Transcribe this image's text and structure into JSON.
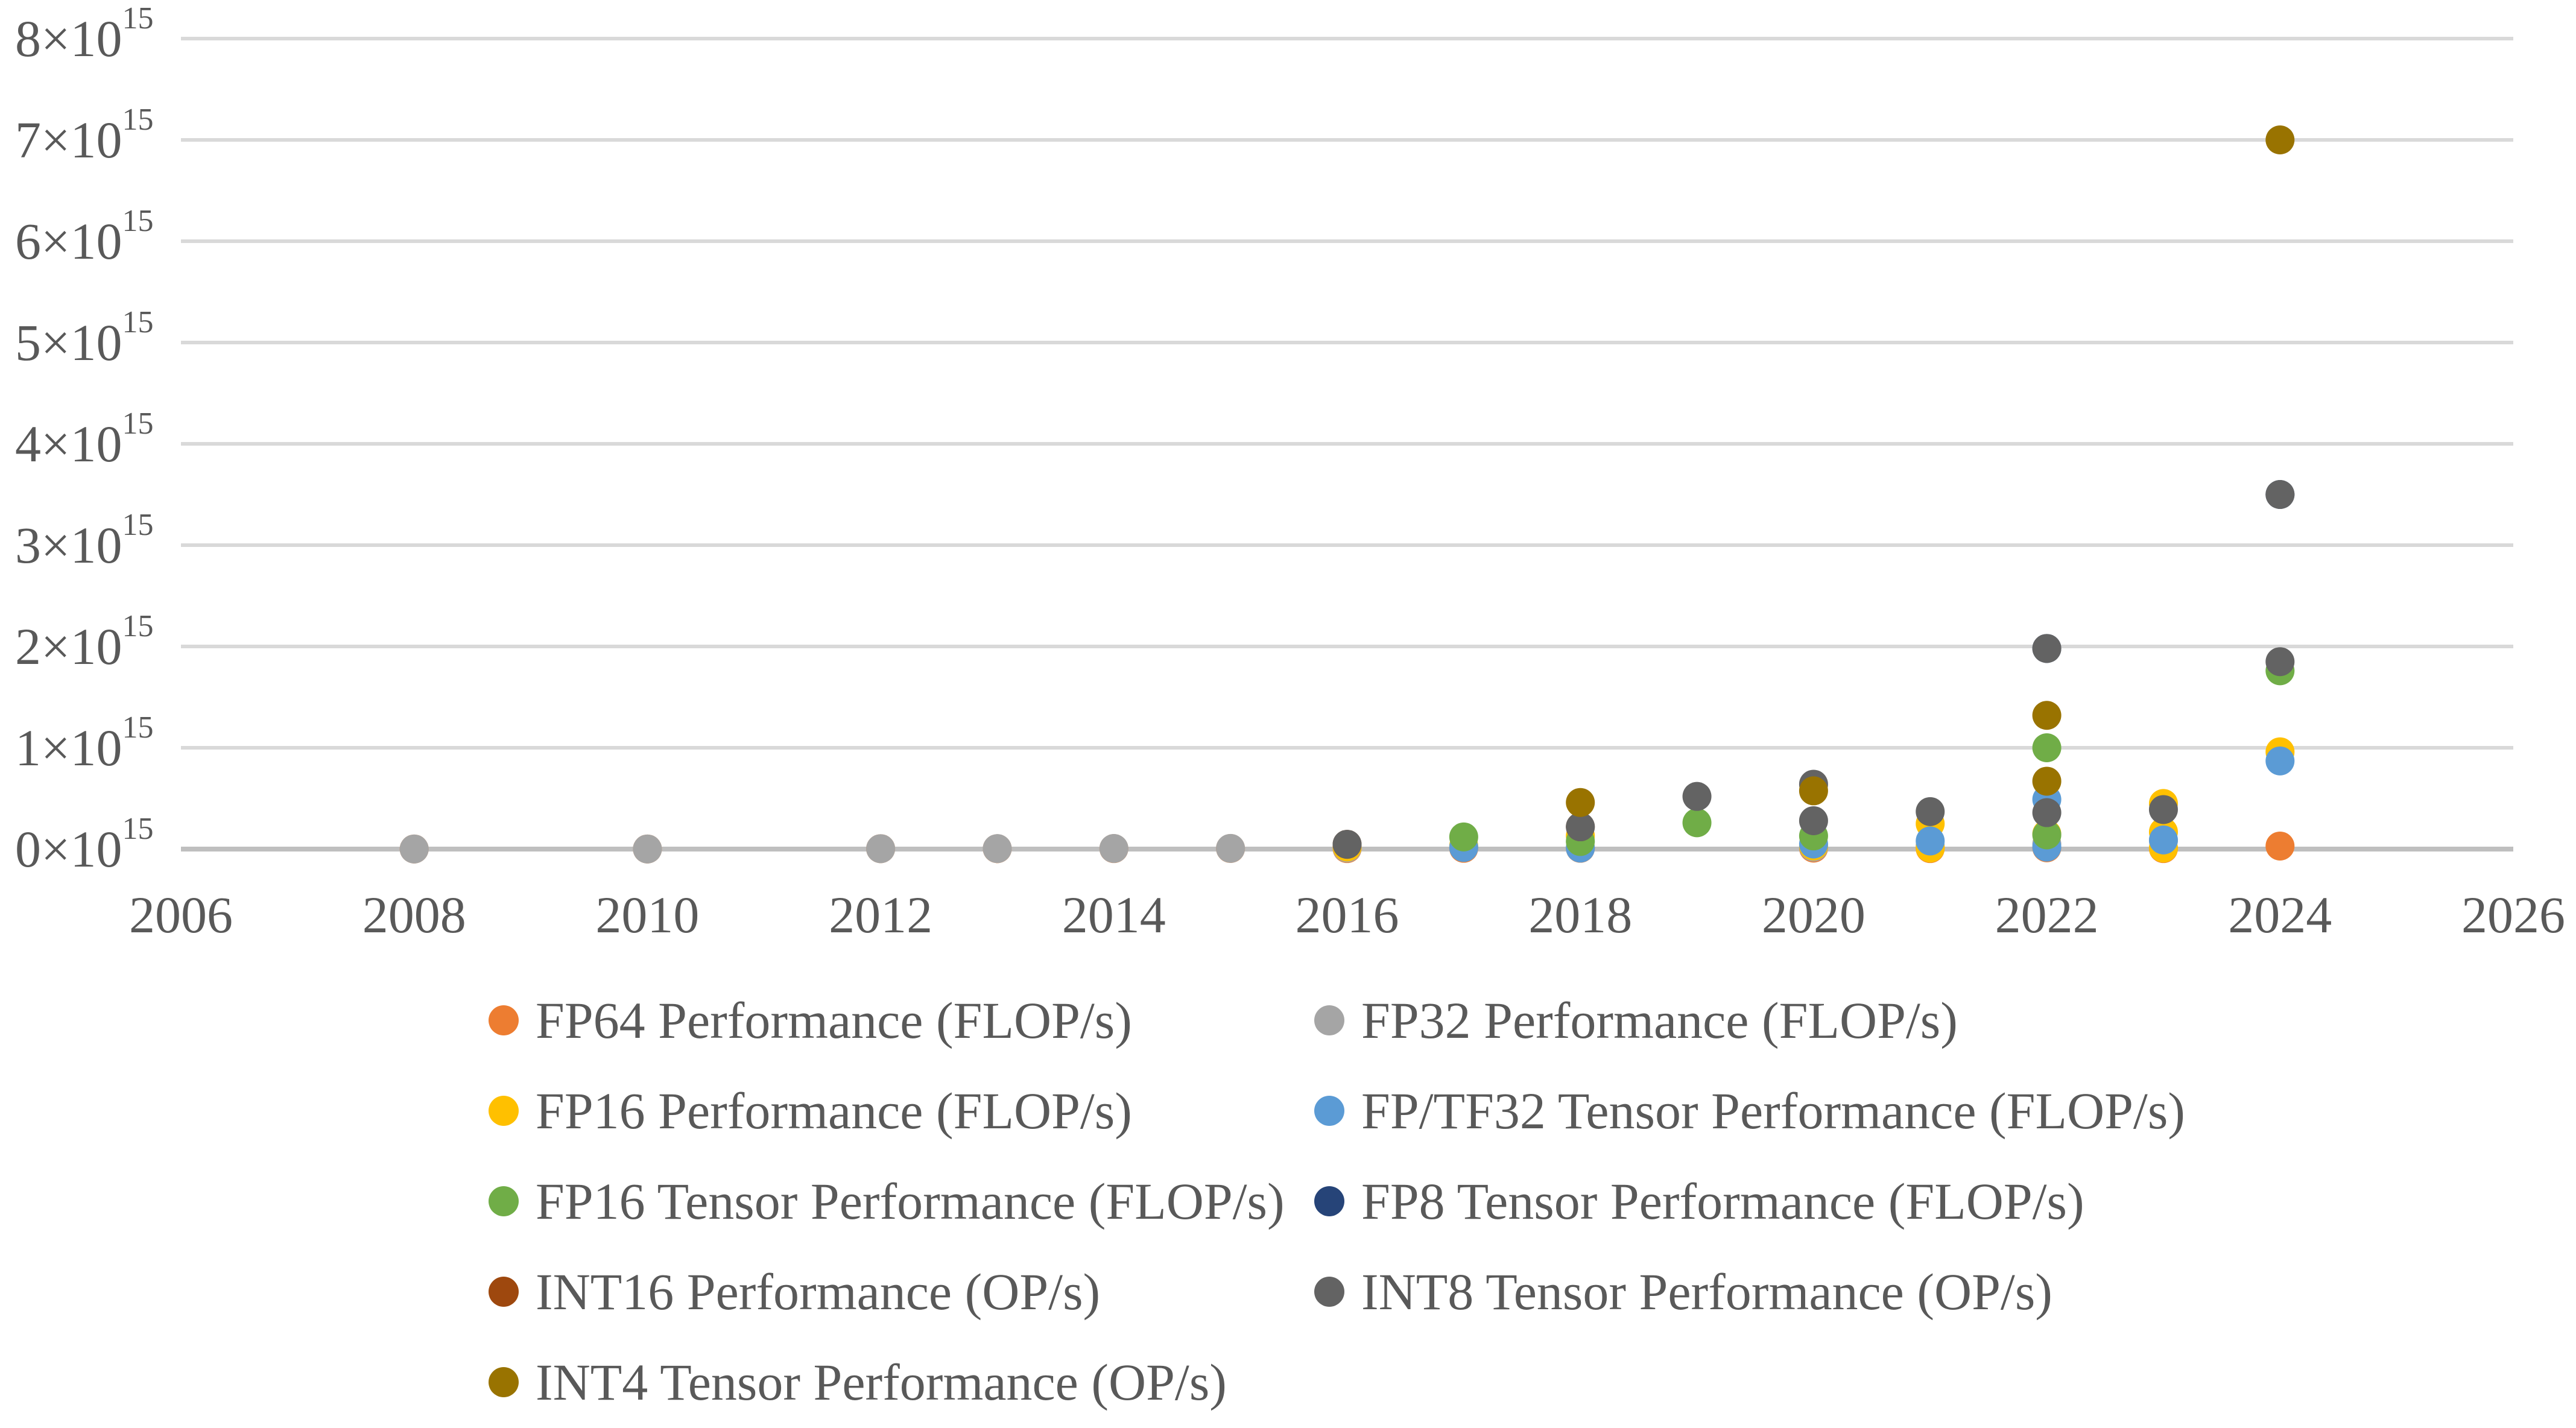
{
  "chart_data": {
    "type": "scatter",
    "title": "",
    "xlabel": "",
    "ylabel": "",
    "grid": true,
    "legend_position": "bottom-two-columns",
    "x_axis": {
      "min": 2006,
      "max": 2026,
      "tick_step": 2,
      "tick_labels": [
        "2006",
        "2008",
        "2010",
        "2012",
        "2014",
        "2016",
        "2018",
        "2020",
        "2022",
        "2024",
        "2026"
      ]
    },
    "y_axis": {
      "min": 0,
      "max": 8,
      "tick_mantissas": [
        "0",
        "1",
        "2",
        "3",
        "4",
        "5",
        "6",
        "7",
        "8"
      ],
      "tick_times_base": "×10",
      "tick_exponent": "15",
      "tick_labels": [
        "0×10¹⁵",
        "1×10¹⁵",
        "2×10¹⁵",
        "3×10¹⁵",
        "4×10¹⁵",
        "5×10¹⁵",
        "6×10¹⁵",
        "7×10¹⁵",
        "8×10¹⁵"
      ]
    },
    "colors": {
      "gridline": "#D9D9D9",
      "axis_line": "#BFBFBF",
      "text": "#595959",
      "background": "#FFFFFF"
    },
    "series": [
      {
        "name": "FP64 Performance (FLOP/s)",
        "color": "#ED7D31",
        "legend_col": 0,
        "legend_row": 0,
        "points": [
          [
            2008,
            0.001
          ],
          [
            2010,
            0.001
          ],
          [
            2012,
            0.004
          ],
          [
            2013,
            0.004
          ],
          [
            2014,
            0.005
          ],
          [
            2015,
            0.006
          ],
          [
            2016,
            0.005
          ],
          [
            2017,
            0.008
          ],
          [
            2018,
            0.008
          ],
          [
            2020,
            0.01
          ],
          [
            2021,
            0.005
          ],
          [
            2022,
            0.013
          ],
          [
            2023,
            0.005
          ],
          [
            2024,
            0.03
          ]
        ]
      },
      {
        "name": "FP32 Performance (FLOP/s)",
        "color": "#A5A5A5",
        "legend_col": 1,
        "legend_row": 0,
        "points": [
          [
            2008,
            0.001
          ],
          [
            2010,
            0.001
          ],
          [
            2012,
            0.004
          ],
          [
            2013,
            0.005
          ],
          [
            2014,
            0.006
          ],
          [
            2015,
            0.007
          ],
          [
            2016,
            0.011
          ],
          [
            2017,
            0.016
          ],
          [
            2018,
            0.016
          ],
          [
            2020,
            0.02
          ],
          [
            2021,
            0.031
          ],
          [
            2022,
            0.051
          ],
          [
            2023,
            0.083
          ]
        ]
      },
      {
        "name": "FP16 Performance (FLOP/s)",
        "color": "#FFC000",
        "legend_col": 0,
        "legend_row": 1,
        "points": [
          [
            2016,
            0.021
          ],
          [
            2017,
            0.031
          ],
          [
            2018,
            0.13
          ],
          [
            2020,
            0.031
          ],
          [
            2021,
            0.25
          ],
          [
            2021,
            0.01
          ],
          [
            2022,
            0.15
          ],
          [
            2023,
            0.45
          ],
          [
            2023,
            0.17
          ],
          [
            2023,
            0.01
          ],
          [
            2024,
            0.96
          ]
        ]
      },
      {
        "name": "FP/TF32 Tensor Performance (FLOP/s)",
        "color": "#5B9BD5",
        "legend_col": 1,
        "legend_row": 1,
        "points": [
          [
            2017,
            0.016
          ],
          [
            2018,
            0.01
          ],
          [
            2020,
            0.05
          ],
          [
            2021,
            0.08
          ],
          [
            2022,
            0.49
          ],
          [
            2022,
            0.02
          ],
          [
            2023,
            0.09
          ],
          [
            2024,
            0.87
          ]
        ]
      },
      {
        "name": "FP16 Tensor Performance (FLOP/s)",
        "color": "#70AD47",
        "legend_col": 0,
        "legend_row": 2,
        "points": [
          [
            2017,
            0.12
          ],
          [
            2018,
            0.075
          ],
          [
            2019,
            0.26
          ],
          [
            2020,
            0.13
          ],
          [
            2022,
            1.0
          ],
          [
            2022,
            0.14
          ],
          [
            2024,
            1.76
          ]
        ]
      },
      {
        "name": "FP8 Tensor Performance (FLOP/s)",
        "color": "#264478",
        "legend_col": 1,
        "legend_row": 2,
        "points": [
          [
            2022,
            1.98
          ],
          [
            2024,
            3.5
          ]
        ]
      },
      {
        "name": "INT16 Performance (OP/s)",
        "color": "#9E480E",
        "legend_col": 0,
        "legend_row": 3,
        "points": [
          [
            2016,
            0.047
          ],
          [
            2018,
            0.22
          ]
        ]
      },
      {
        "name": "INT8 Tensor Performance (OP/s)",
        "color": "#636363",
        "legend_col": 1,
        "legend_row": 3,
        "points": [
          [
            2016,
            0.047
          ],
          [
            2018,
            0.22
          ],
          [
            2019,
            0.52
          ],
          [
            2020,
            0.64
          ],
          [
            2020,
            0.28
          ],
          [
            2021,
            0.37
          ],
          [
            2022,
            1.98
          ],
          [
            2022,
            0.36
          ],
          [
            2023,
            0.39
          ],
          [
            2024,
            3.5
          ],
          [
            2024,
            1.85
          ]
        ]
      },
      {
        "name": "INT4 Tensor Performance (OP/s)",
        "color": "#997300",
        "legend_col": 0,
        "legend_row": 4,
        "points": [
          [
            2018,
            0.46
          ],
          [
            2020,
            0.575
          ],
          [
            2022,
            1.32
          ],
          [
            2022,
            0.67
          ],
          [
            2024,
            7.0
          ]
        ]
      }
    ]
  }
}
